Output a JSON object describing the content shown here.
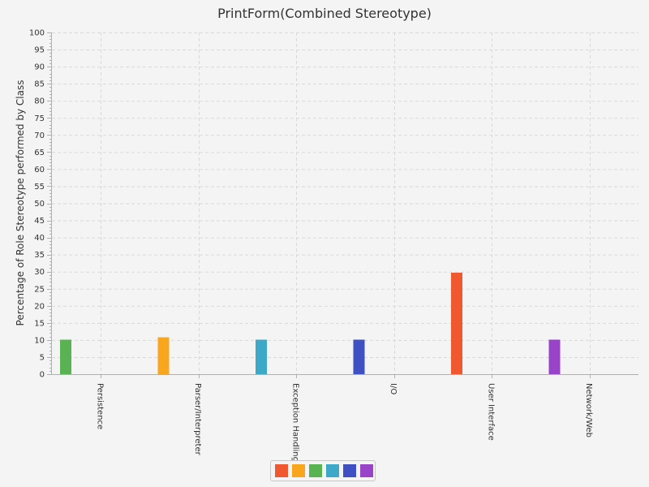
{
  "chart_data": {
    "type": "bar",
    "title": "PrintForm(Combined Stereotype)",
    "xlabel": "",
    "ylabel": "Percentage of Role Stereotype performed by Class",
    "ylim": [
      0,
      100
    ],
    "ytick_step": 5,
    "grid": true,
    "legend_position": "bottom-center",
    "categories": [
      "Persistence",
      "Parser/Interpreter",
      "Exception Handling",
      "I/O",
      "User Interface",
      "Network/Web"
    ],
    "series": [
      {
        "color": "#f0582f",
        "values": [
          0,
          0,
          0,
          0,
          29.7,
          0
        ]
      },
      {
        "color": "#f9a61f",
        "values": [
          0,
          10.8,
          0,
          0,
          0,
          0
        ]
      },
      {
        "color": "#59b352",
        "values": [
          10.1,
          0,
          0,
          0,
          0,
          0
        ]
      },
      {
        "color": "#3ea8c8",
        "values": [
          0,
          0,
          10.1,
          0,
          0,
          0
        ]
      },
      {
        "color": "#3f50c3",
        "values": [
          0,
          0,
          0,
          10.1,
          0,
          0
        ]
      },
      {
        "color": "#9943c9",
        "values": [
          0,
          0,
          0,
          0,
          0,
          10.1
        ]
      }
    ]
  }
}
